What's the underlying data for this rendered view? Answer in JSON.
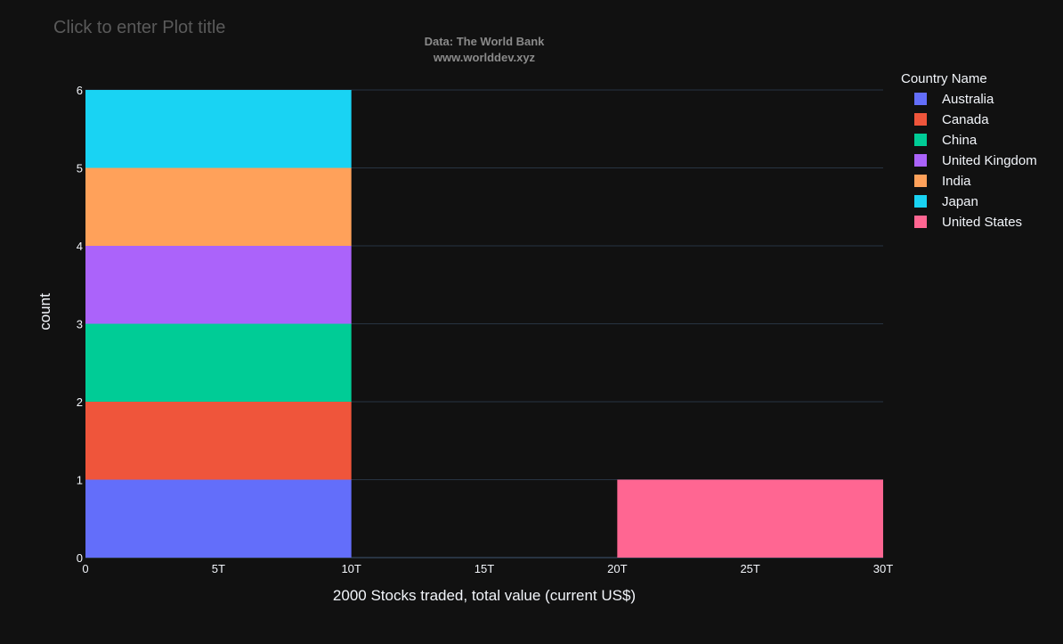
{
  "title_placeholder": "Click to enter Plot title",
  "annotation": {
    "line1": "Data: The World Bank",
    "line2": "www.worlddev.xyz"
  },
  "colors": {
    "background": "#111111",
    "grid": "#283442",
    "tick_text": "#f2f5fa",
    "title_placeholder": "#5a5a5a",
    "annotation": "#8a8a8a"
  },
  "chart_data": {
    "type": "bar",
    "barmode": "stack",
    "histogram": true,
    "xlabel": "2000 Stocks traded, total value (current US$)",
    "ylabel": "count",
    "xlim": [
      0,
      30
    ],
    "ylim": [
      0,
      6
    ],
    "x_ticks": [
      {
        "value": 0,
        "label": "0"
      },
      {
        "value": 5,
        "label": "5T"
      },
      {
        "value": 10,
        "label": "10T"
      },
      {
        "value": 15,
        "label": "15T"
      },
      {
        "value": 20,
        "label": "20T"
      },
      {
        "value": 25,
        "label": "25T"
      },
      {
        "value": 30,
        "label": "30T"
      }
    ],
    "y_ticks": [
      {
        "value": 0,
        "label": "0"
      },
      {
        "value": 1,
        "label": "1"
      },
      {
        "value": 2,
        "label": "2"
      },
      {
        "value": 3,
        "label": "3"
      },
      {
        "value": 4,
        "label": "4"
      },
      {
        "value": 5,
        "label": "5"
      },
      {
        "value": 6,
        "label": "6"
      }
    ],
    "bins": [
      {
        "start": 0,
        "end": 10
      },
      {
        "start": 10,
        "end": 20
      },
      {
        "start": 20,
        "end": 30
      }
    ],
    "legend_title": "Country Name",
    "legend_position": "top-right",
    "grid": true,
    "series": [
      {
        "name": "Australia",
        "color": "#636efa",
        "values": [
          1,
          0,
          0
        ]
      },
      {
        "name": "Canada",
        "color": "#EF553B",
        "values": [
          1,
          0,
          0
        ]
      },
      {
        "name": "China",
        "color": "#00cc96",
        "values": [
          1,
          0,
          0
        ]
      },
      {
        "name": "United Kingdom",
        "color": "#ab63fa",
        "values": [
          1,
          0,
          0
        ]
      },
      {
        "name": "India",
        "color": "#FFA15A",
        "values": [
          1,
          0,
          0
        ]
      },
      {
        "name": "Japan",
        "color": "#19d3f3",
        "values": [
          1,
          0,
          0
        ]
      },
      {
        "name": "United States",
        "color": "#FF6692",
        "values": [
          0,
          0,
          1
        ]
      }
    ]
  }
}
